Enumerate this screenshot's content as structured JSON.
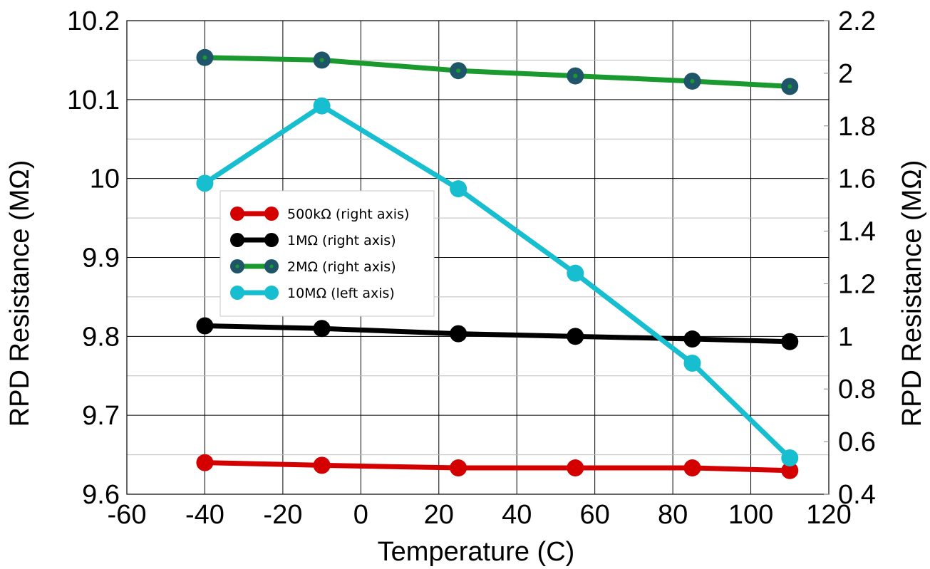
{
  "chart_data": {
    "type": "line",
    "title": "",
    "xlabel": "Temperature (C)",
    "ylabel_left": "RPD Resistance (MΩ)",
    "ylabel_right": "RPD Resistance (MΩ)",
    "xlim": [
      -60,
      120
    ],
    "ylim_left": [
      9.6,
      10.2
    ],
    "ylim_right": [
      0.4,
      2.2
    ],
    "x_ticks": [
      -60,
      -40,
      -20,
      0,
      20,
      40,
      60,
      80,
      100,
      120
    ],
    "x_tick_labels": [
      "-60",
      "-40",
      "-20",
      "0",
      "20",
      "40",
      "60",
      "80",
      "100",
      "120"
    ],
    "y_left_ticks": [
      9.6,
      9.7,
      9.8,
      9.9,
      10.0,
      10.1,
      10.2
    ],
    "y_left_tick_labels": [
      "9.6",
      "9.7",
      "9.8",
      "9.9",
      "10",
      "10.1",
      "10.2"
    ],
    "y_right_ticks": [
      0.4,
      0.6,
      0.8,
      1.0,
      1.2,
      1.4,
      1.6,
      1.8,
      2.0,
      2.2
    ],
    "y_right_tick_labels": [
      "0.4",
      "0.6",
      "0.8",
      "1",
      "1.2",
      "1.4",
      "1.6",
      "1.8",
      "2",
      "2.2"
    ],
    "grid": true,
    "legend_position": "center-left",
    "series": [
      {
        "name": "500kΩ (right axis)",
        "axis": "right",
        "color": "#d40000",
        "marker_color": "#d40000",
        "x": [
          -40,
          -10,
          25,
          55,
          85,
          110
        ],
        "values": [
          0.52,
          0.51,
          0.5,
          0.5,
          0.5,
          0.49
        ]
      },
      {
        "name": "1MΩ (right axis)",
        "axis": "right",
        "color": "#000000",
        "marker_color": "#000000",
        "x": [
          -40,
          -10,
          25,
          55,
          85,
          110
        ],
        "values": [
          1.04,
          1.03,
          1.01,
          1.0,
          0.99,
          0.98
        ]
      },
      {
        "name": "2MΩ (right axis)",
        "axis": "right",
        "color": "#1a9a2e",
        "marker_color": "#1f5568",
        "x": [
          -40,
          -10,
          25,
          55,
          85,
          110
        ],
        "values": [
          2.06,
          2.05,
          2.01,
          1.99,
          1.97,
          1.95
        ]
      },
      {
        "name": "10MΩ (left axis)",
        "axis": "left",
        "color": "#17becf",
        "marker_color": "#17becf",
        "x": [
          -40,
          -10,
          25,
          55,
          85,
          110
        ],
        "values": [
          9.994,
          10.092,
          9.987,
          9.88,
          9.766,
          9.646
        ]
      }
    ]
  }
}
